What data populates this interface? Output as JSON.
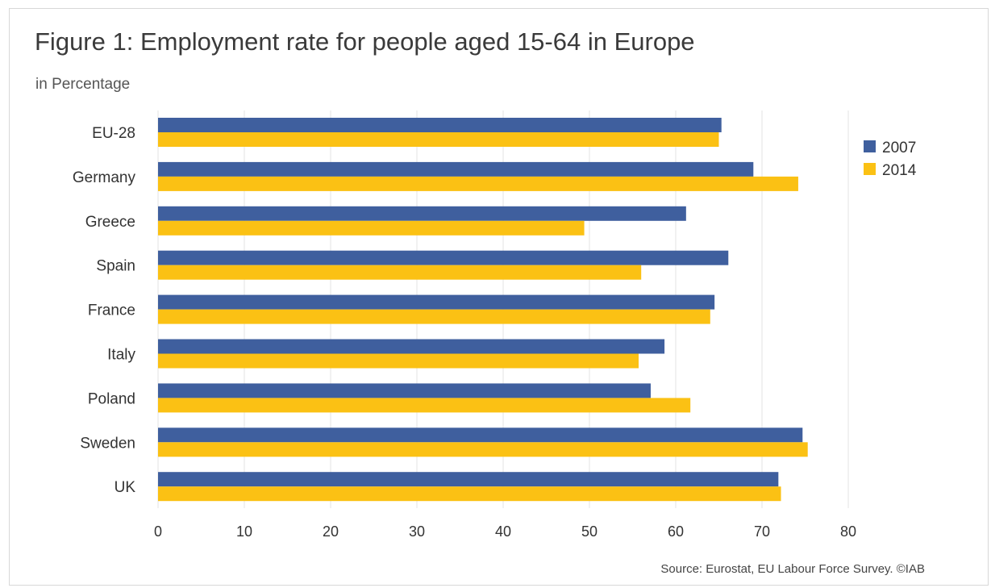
{
  "header": {
    "title": "Figure 1: Employment rate for people aged 15-64 in Europe",
    "subtitle": "in Percentage"
  },
  "footer": {
    "source": "Source: Eurostat, EU Labour Force Survey. ©IAB"
  },
  "colors": {
    "series_2007": "#3f5f9e",
    "series_2014": "#fbc114",
    "grid": "#e3e3e3"
  },
  "chart_data": {
    "type": "bar",
    "orientation": "horizontal",
    "categories": [
      "EU-28",
      "Germany",
      "Greece",
      "Spain",
      "France",
      "Italy",
      "Poland",
      "Sweden",
      "UK"
    ],
    "series": [
      {
        "name": "2007",
        "values": [
          65.3,
          69.0,
          61.2,
          66.1,
          64.5,
          58.7,
          57.1,
          74.7,
          71.9
        ]
      },
      {
        "name": "2014",
        "values": [
          65.0,
          74.2,
          49.4,
          56.0,
          64.0,
          55.7,
          61.7,
          75.3,
          72.2
        ]
      }
    ],
    "x_ticks": [
      "0",
      "10",
      "20",
      "30",
      "40",
      "50",
      "60",
      "70",
      "80"
    ],
    "xlim": [
      0,
      80
    ],
    "grid": "vertical",
    "legend_position": "top-right"
  }
}
